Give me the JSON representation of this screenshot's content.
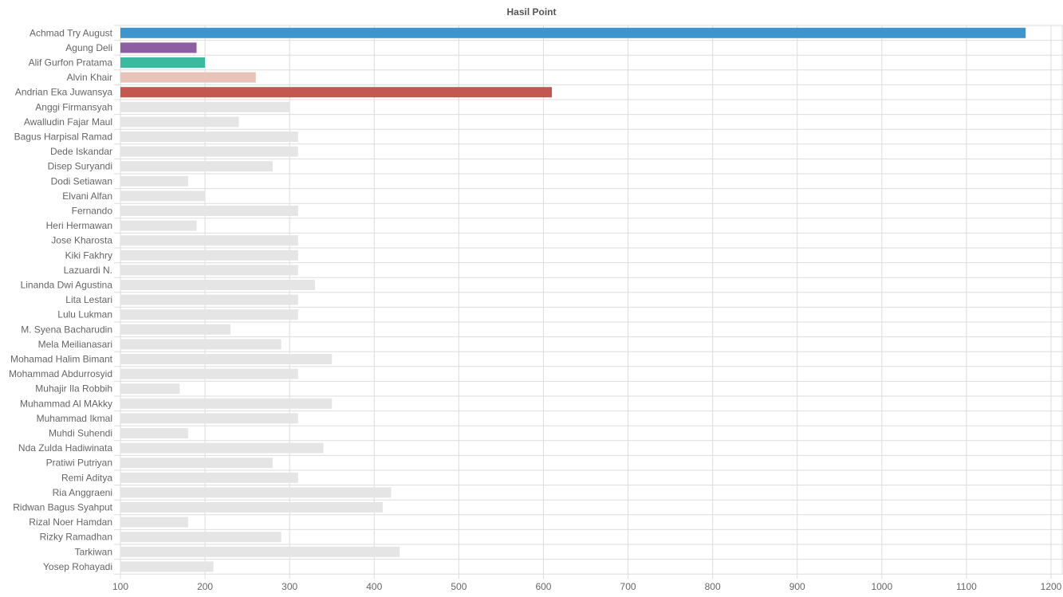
{
  "chart_data": {
    "type": "bar",
    "orientation": "horizontal",
    "title": "Hasil Point",
    "xlabel": "",
    "ylabel": "",
    "xlim": [
      100,
      1200
    ],
    "xticks": [
      100,
      200,
      300,
      400,
      500,
      600,
      700,
      800,
      900,
      1000,
      1100,
      1200
    ],
    "grid": true,
    "legend": "none",
    "categories": [
      "Achmad Try August",
      "Agung Deli",
      "Alif Gurfon Pratama",
      "Alvin Khair",
      "Andrian Eka Juwansya",
      "Anggi Firmansyah",
      "Awalludin Fajar Maul",
      "Bagus Harpisal Ramad",
      "Dede Iskandar",
      "Disep Suryandi",
      "Dodi Setiawan",
      "Elvani Alfan",
      "Fernando",
      "Heri Hermawan",
      "Jose Kharosta",
      "Kiki Fakhry",
      "Lazuardi N.",
      "Linanda Dwi Agustina",
      "Lita Lestari",
      "Lulu Lukman",
      "M. Syena Bacharudin",
      "Mela Meilianasari",
      "Mohamad Halim Bimant",
      "Mohammad Abdurrosyid",
      "Muhajir Ila Robbih",
      "Muhammad Al MAkky",
      "Muhammad Ikmal",
      "Muhdi Suhendi",
      "Nda Zulda Hadiwinata",
      "Pratiwi Putriyan",
      "Remi Aditya",
      "Ria Anggraeni",
      "Ridwan Bagus Syahput",
      "Rizal Noer Hamdan",
      "Rizky Ramadhan",
      "Tarkiwan",
      "Yosep Rohayadi"
    ],
    "values": [
      1170,
      190,
      200,
      260,
      610,
      300,
      240,
      310,
      310,
      280,
      180,
      200,
      310,
      190,
      310,
      310,
      310,
      330,
      310,
      310,
      230,
      290,
      350,
      310,
      170,
      350,
      310,
      180,
      340,
      280,
      310,
      420,
      410,
      180,
      290,
      430,
      210
    ],
    "colors": [
      "#3e95cd",
      "#8e5ea2",
      "#3cba9f",
      "#e8c3b9",
      "#c45850",
      "#e5e5e5",
      "#e5e5e5",
      "#e5e5e5",
      "#e5e5e5",
      "#e5e5e5",
      "#e5e5e5",
      "#e5e5e5",
      "#e5e5e5",
      "#e5e5e5",
      "#e5e5e5",
      "#e5e5e5",
      "#e5e5e5",
      "#e5e5e5",
      "#e5e5e5",
      "#e5e5e5",
      "#e5e5e5",
      "#e5e5e5",
      "#e5e5e5",
      "#e5e5e5",
      "#e5e5e5",
      "#e5e5e5",
      "#e5e5e5",
      "#e5e5e5",
      "#e5e5e5",
      "#e5e5e5",
      "#e5e5e5",
      "#e5e5e5",
      "#e5e5e5",
      "#e5e5e5",
      "#e5e5e5",
      "#e5e5e5",
      "#e5e5e5"
    ],
    "grid_color": "#dddddd"
  }
}
